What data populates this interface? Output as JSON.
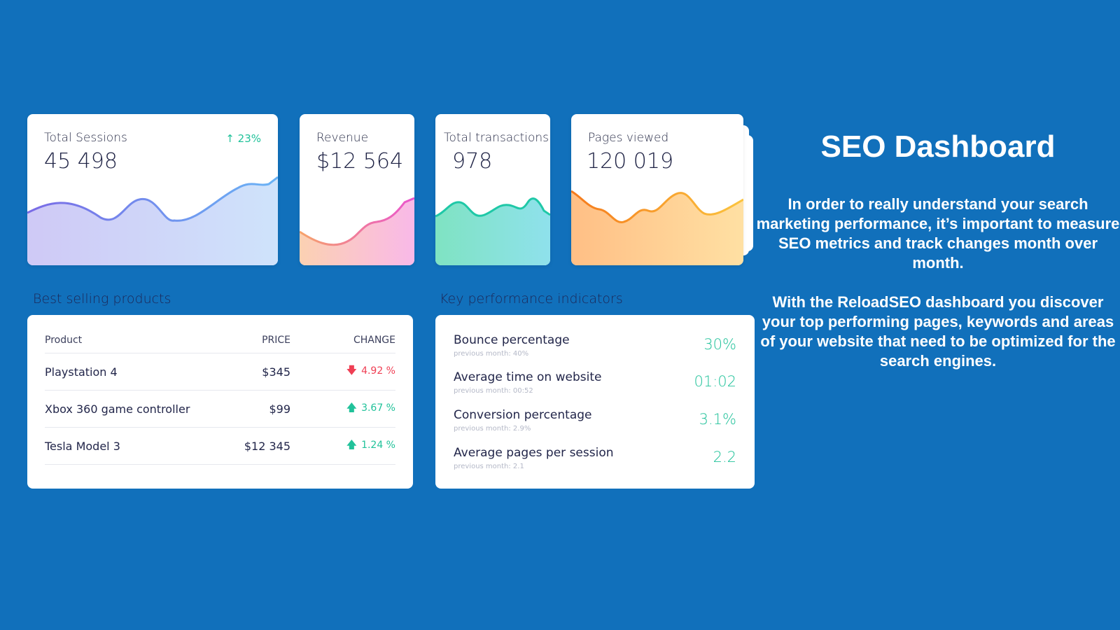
{
  "metrics": {
    "sessions": {
      "label": "Total Sessions",
      "value": "45 498",
      "trend": "23%",
      "trend_dir": "up"
    },
    "revenue": {
      "label": "Revenue",
      "value": "$12 564"
    },
    "transactions": {
      "label": "Total transactions",
      "value": "978"
    },
    "pages": {
      "label": "Pages viewed",
      "value": "120 019"
    }
  },
  "products": {
    "title": "Best selling products",
    "headers": {
      "product": "Product",
      "price": "PRICE",
      "change": "CHANGE"
    },
    "rows": [
      {
        "name": "Playstation 4",
        "price": "$345",
        "change": "4.92 %",
        "dir": "down"
      },
      {
        "name": "Xbox 360 game controller",
        "price": "$99",
        "change": "3.67 %",
        "dir": "up"
      },
      {
        "name": "Tesla Model 3",
        "price": "$12 345",
        "change": "1.24 %",
        "dir": "up"
      }
    ]
  },
  "kpi": {
    "title": "Key performance indicators",
    "rows": [
      {
        "label": "Bounce percentage",
        "prev": "previous month: 40%",
        "value": "30%"
      },
      {
        "label": "Average time on website",
        "prev": "previous month: 00:52",
        "value": "01:02"
      },
      {
        "label": "Conversion percentage",
        "prev": "previous month: 2.9%",
        "value": "3.1%"
      },
      {
        "label": "Average pages per session",
        "prev": "previous month: 2.1",
        "value": "2.2"
      }
    ]
  },
  "promo": {
    "title": "SEO Dashboard",
    "paragraph1": "In order to really understand your search marketing performance, it’s important to measure SEO metrics and track changes month over month.",
    "paragraph2": "With the ReloadSEO dashboard you discover your top performing pages, keywords and areas of your website that need to be optimized for the search engines."
  },
  "colors": {
    "background": "#1170bb",
    "positive": "#21c29a",
    "negative": "#ef3f54"
  },
  "icons": {
    "up": "arrow-up-icon",
    "down": "arrow-down-icon"
  }
}
